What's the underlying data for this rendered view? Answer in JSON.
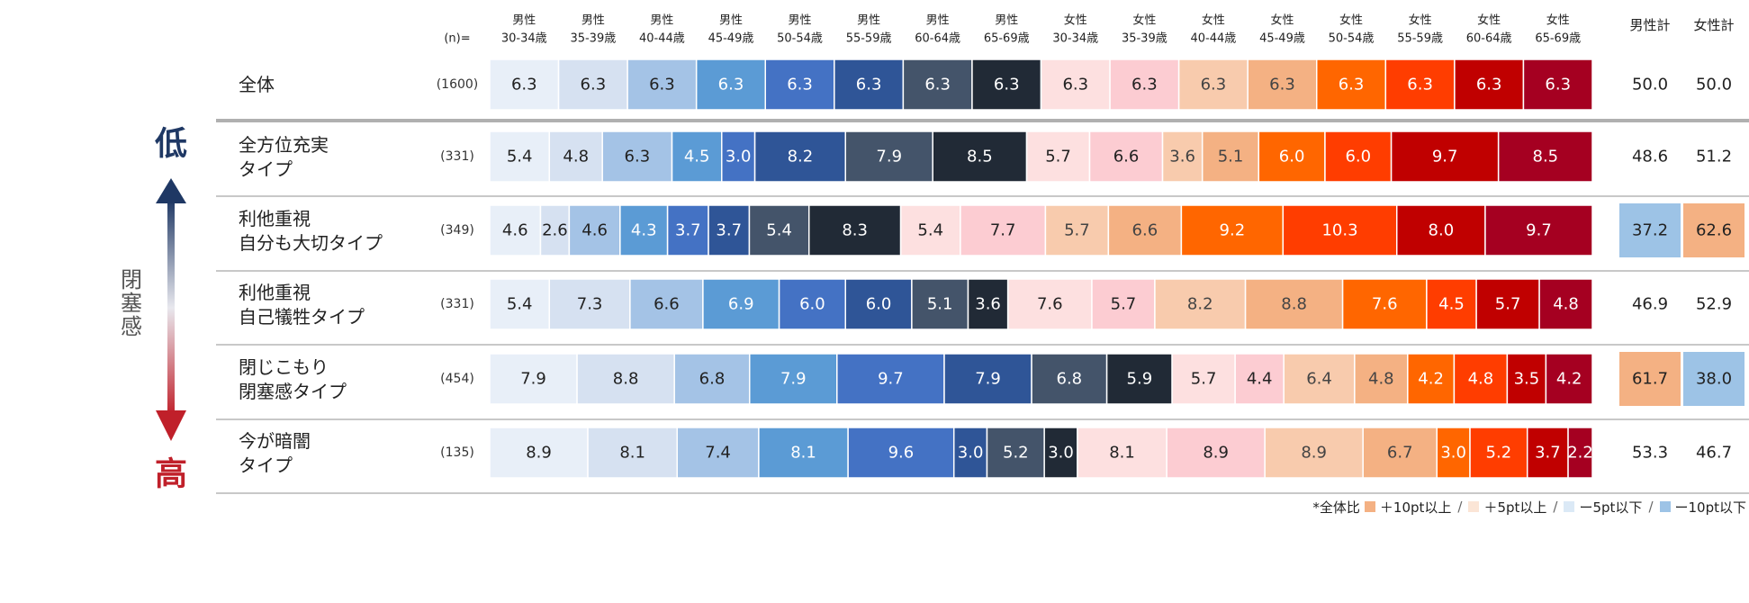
{
  "chart_data": {
    "type": "bar",
    "subtype": "stacked-horizontal-100",
    "n_label": "(n)=",
    "columns": [
      "男性\n30-34歳",
      "男性\n35-39歳",
      "男性\n40-44歳",
      "男性\n45-49歳",
      "男性\n50-54歳",
      "男性\n55-59歳",
      "男性\n60-64歳",
      "男性\n65-69歳",
      "女性\n30-34歳",
      "女性\n35-39歳",
      "女性\n40-44歳",
      "女性\n45-49歳",
      "女性\n50-54歳",
      "女性\n55-59歳",
      "女性\n60-64歳",
      "女性\n65-69歳"
    ],
    "segment_colors": [
      "#e8eff8",
      "#d6e1f1",
      "#a4c3e6",
      "#5b9bd5",
      "#4472c4",
      "#2f5597",
      "#44546a",
      "#212a36",
      "#fde0e0",
      "#fcccd2",
      "#f8cbad",
      "#f4b183",
      "#ff6600",
      "#ff3d00",
      "#c00000",
      "#a50021"
    ],
    "dark_text_segments": 3,
    "total_headers": [
      "男性計",
      "女性計"
    ],
    "rows": [
      {
        "label": "全体",
        "n": "(1600)",
        "values": [
          6.3,
          6.3,
          6.3,
          6.3,
          6.3,
          6.3,
          6.3,
          6.3,
          6.3,
          6.3,
          6.3,
          6.3,
          6.3,
          6.3,
          6.3,
          6.3
        ],
        "totals": [
          50.0,
          50.0
        ],
        "total_highlight": [
          null,
          null
        ]
      },
      {
        "label": "全方位充実\nタイプ",
        "n": "(331)",
        "values": [
          5.4,
          4.8,
          6.3,
          4.5,
          3.0,
          8.2,
          7.9,
          8.5,
          5.7,
          6.6,
          3.6,
          5.1,
          6.0,
          6.0,
          9.7,
          8.5
        ],
        "totals": [
          48.6,
          51.2
        ],
        "total_highlight": [
          null,
          null
        ]
      },
      {
        "label": "利他重視\n自分も大切タイプ",
        "n": "(349)",
        "values": [
          4.6,
          2.6,
          4.6,
          4.3,
          3.7,
          3.7,
          5.4,
          8.3,
          5.4,
          7.7,
          5.7,
          6.6,
          9.2,
          10.3,
          8.0,
          9.7
        ],
        "totals": [
          37.2,
          62.6
        ],
        "total_highlight": [
          "minus10",
          "plus10"
        ]
      },
      {
        "label": "利他重視\n自己犠牲タイプ",
        "n": "(331)",
        "values": [
          5.4,
          7.3,
          6.6,
          6.9,
          6.0,
          6.0,
          5.1,
          3.6,
          7.6,
          5.7,
          8.2,
          8.8,
          7.6,
          4.5,
          5.7,
          4.8
        ],
        "totals": [
          46.9,
          52.9
        ],
        "total_highlight": [
          null,
          null
        ]
      },
      {
        "label": "閉じこもり\n閉塞感タイプ",
        "n": "(454)",
        "values": [
          7.9,
          8.8,
          6.8,
          7.9,
          9.7,
          7.9,
          6.8,
          5.9,
          5.7,
          4.4,
          6.4,
          4.8,
          4.2,
          4.8,
          3.5,
          4.2
        ],
        "totals": [
          61.7,
          38.0
        ],
        "total_highlight": [
          "plus10",
          "minus10"
        ]
      },
      {
        "label": "今が暗闇\nタイプ",
        "n": "(135)",
        "values": [
          8.9,
          8.1,
          7.4,
          8.1,
          9.6,
          3.0,
          5.2,
          3.0,
          8.1,
          8.9,
          8.9,
          6.7,
          3.0,
          5.2,
          3.7,
          2.2
        ],
        "totals": [
          53.3,
          46.7
        ],
        "total_highlight": [
          null,
          null
        ]
      }
    ],
    "axis_label": "閉\n塞\n感",
    "axis_top": "低",
    "axis_bottom": "高",
    "legend": {
      "prefix": "*全体比",
      "items": [
        {
          "label": "＋10pt以上",
          "color": "#f4b183"
        },
        {
          "label": "＋5pt以上",
          "color": "#fbe5d6"
        },
        {
          "label": "ー5pt以下",
          "color": "#dbe9f6"
        },
        {
          "label": "ー10pt以下",
          "color": "#9dc3e6"
        }
      ]
    },
    "highlight_colors": {
      "plus10": "#f4b183",
      "minus10": "#9dc3e6"
    },
    "axis_colors": {
      "top": "#1f3864",
      "bottom": "#c0202a"
    }
  }
}
